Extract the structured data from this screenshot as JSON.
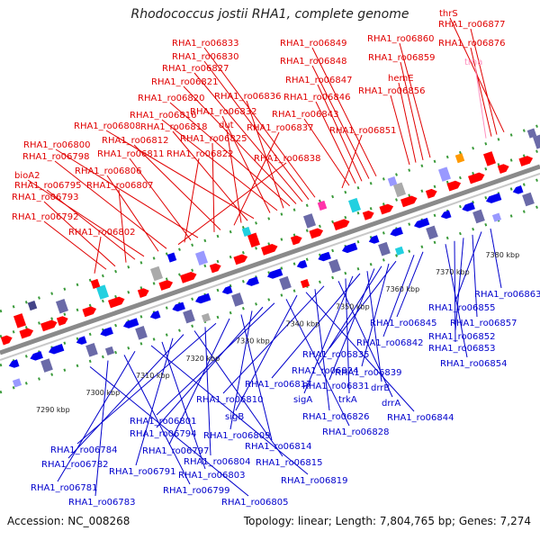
{
  "title": "Rhodococcus jostii RHA1, complete genome",
  "accession": "Accession: NC_008268",
  "summary": "Topology: linear; Length: 7,804,765 bp; Genes: 7,274",
  "colors": {
    "top_label": "#e00000",
    "top_label_rna": "#ff8fbf",
    "bottom_label": "#0000cc",
    "backbone": "#8a8a8a",
    "tick": "#3a9a3a",
    "kbp_text": "#222222"
  },
  "scale_ticks": [
    "7290 kbp",
    "7300 kbp",
    "7310 kbp",
    "7320 kbp",
    "7330 kbp",
    "7340 kbp",
    "7350 kbp",
    "7360 kbp",
    "7370 kbp",
    "7380 kbp"
  ],
  "top_labels": [
    {
      "text": "thrS"
    },
    {
      "text": "RHA1_ro06877"
    },
    {
      "text": "RHA1_ro06876"
    },
    {
      "text": "trna",
      "rna": true
    },
    {
      "text": "RHA1_ro06860"
    },
    {
      "text": "RHA1_ro06859"
    },
    {
      "text": "hemE"
    },
    {
      "text": "RHA1_ro06856"
    },
    {
      "text": "RHA1_ro06849"
    },
    {
      "text": "RHA1_ro06848"
    },
    {
      "text": "RHA1_ro06847"
    },
    {
      "text": "RHA1_ro06846"
    },
    {
      "text": "RHA1_ro06843"
    },
    {
      "text": "RHA1_ro06851"
    },
    {
      "text": "RHA1_ro06833"
    },
    {
      "text": "RHA1_ro06830"
    },
    {
      "text": "RHA1_ro06827"
    },
    {
      "text": "RHA1_ro06821"
    },
    {
      "text": "RHA1_ro06820"
    },
    {
      "text": "RHA1_ro06836"
    },
    {
      "text": "RHA1_ro06816"
    },
    {
      "text": "RHA1_ro06832"
    },
    {
      "text": "RHA1_ro06808"
    },
    {
      "text": "RHA1_ro06818"
    },
    {
      "text": "dut"
    },
    {
      "text": "RHA1_ro06837"
    },
    {
      "text": "RHA1_ro06812"
    },
    {
      "text": "RHA1_ro06825"
    },
    {
      "text": "RHA1_ro06800"
    },
    {
      "text": "RHA1_ro06811"
    },
    {
      "text": "RHA1_ro06822"
    },
    {
      "text": "RHA1_ro06838"
    },
    {
      "text": "RHA1_ro06798"
    },
    {
      "text": "RHA1_ro06806"
    },
    {
      "text": "bioA2"
    },
    {
      "text": "RHA1_ro06795"
    },
    {
      "text": "RHA1_ro06807"
    },
    {
      "text": "RHA1_ro06793"
    },
    {
      "text": "RHA1_ro06792"
    },
    {
      "text": "RHA1_ro06802"
    }
  ],
  "bottom_labels": [
    {
      "text": "RHA1_ro06863"
    },
    {
      "text": "RHA1_ro06855"
    },
    {
      "text": "RHA1_ro06857"
    },
    {
      "text": "RHA1_ro06852"
    },
    {
      "text": "RHA1_ro06853"
    },
    {
      "text": "RHA1_ro06854"
    },
    {
      "text": "RHA1_ro06845"
    },
    {
      "text": "RHA1_ro06842"
    },
    {
      "text": "RHA1_ro06835"
    },
    {
      "text": "RHA1_ro06839"
    },
    {
      "text": "RHA1_ro06824"
    },
    {
      "text": "RHA1_ro06831"
    },
    {
      "text": "drrB"
    },
    {
      "text": "RHA1_ro06817"
    },
    {
      "text": "sigA"
    },
    {
      "text": "trkA"
    },
    {
      "text": "drrA"
    },
    {
      "text": "RHA1_ro06810"
    },
    {
      "text": "RHA1_ro06826"
    },
    {
      "text": "RHA1_ro06844"
    },
    {
      "text": "sigB"
    },
    {
      "text": "RHA1_ro06828"
    },
    {
      "text": "RHA1_ro06801"
    },
    {
      "text": "RHA1_ro06794"
    },
    {
      "text": "RHA1_ro06809"
    },
    {
      "text": "RHA1_ro06814"
    },
    {
      "text": "RHA1_ro06797"
    },
    {
      "text": "RHA1_ro06784"
    },
    {
      "text": "RHA1_ro06804"
    },
    {
      "text": "RHA1_ro06815"
    },
    {
      "text": "RHA1_ro06782"
    },
    {
      "text": "RHA1_ro06791"
    },
    {
      "text": "RHA1_ro06803"
    },
    {
      "text": "RHA1_ro06819"
    },
    {
      "text": "RHA1_ro06781"
    },
    {
      "text": "RHA1_ro06799"
    },
    {
      "text": "RHA1_ro06783"
    },
    {
      "text": "RHA1_ro06805"
    }
  ]
}
